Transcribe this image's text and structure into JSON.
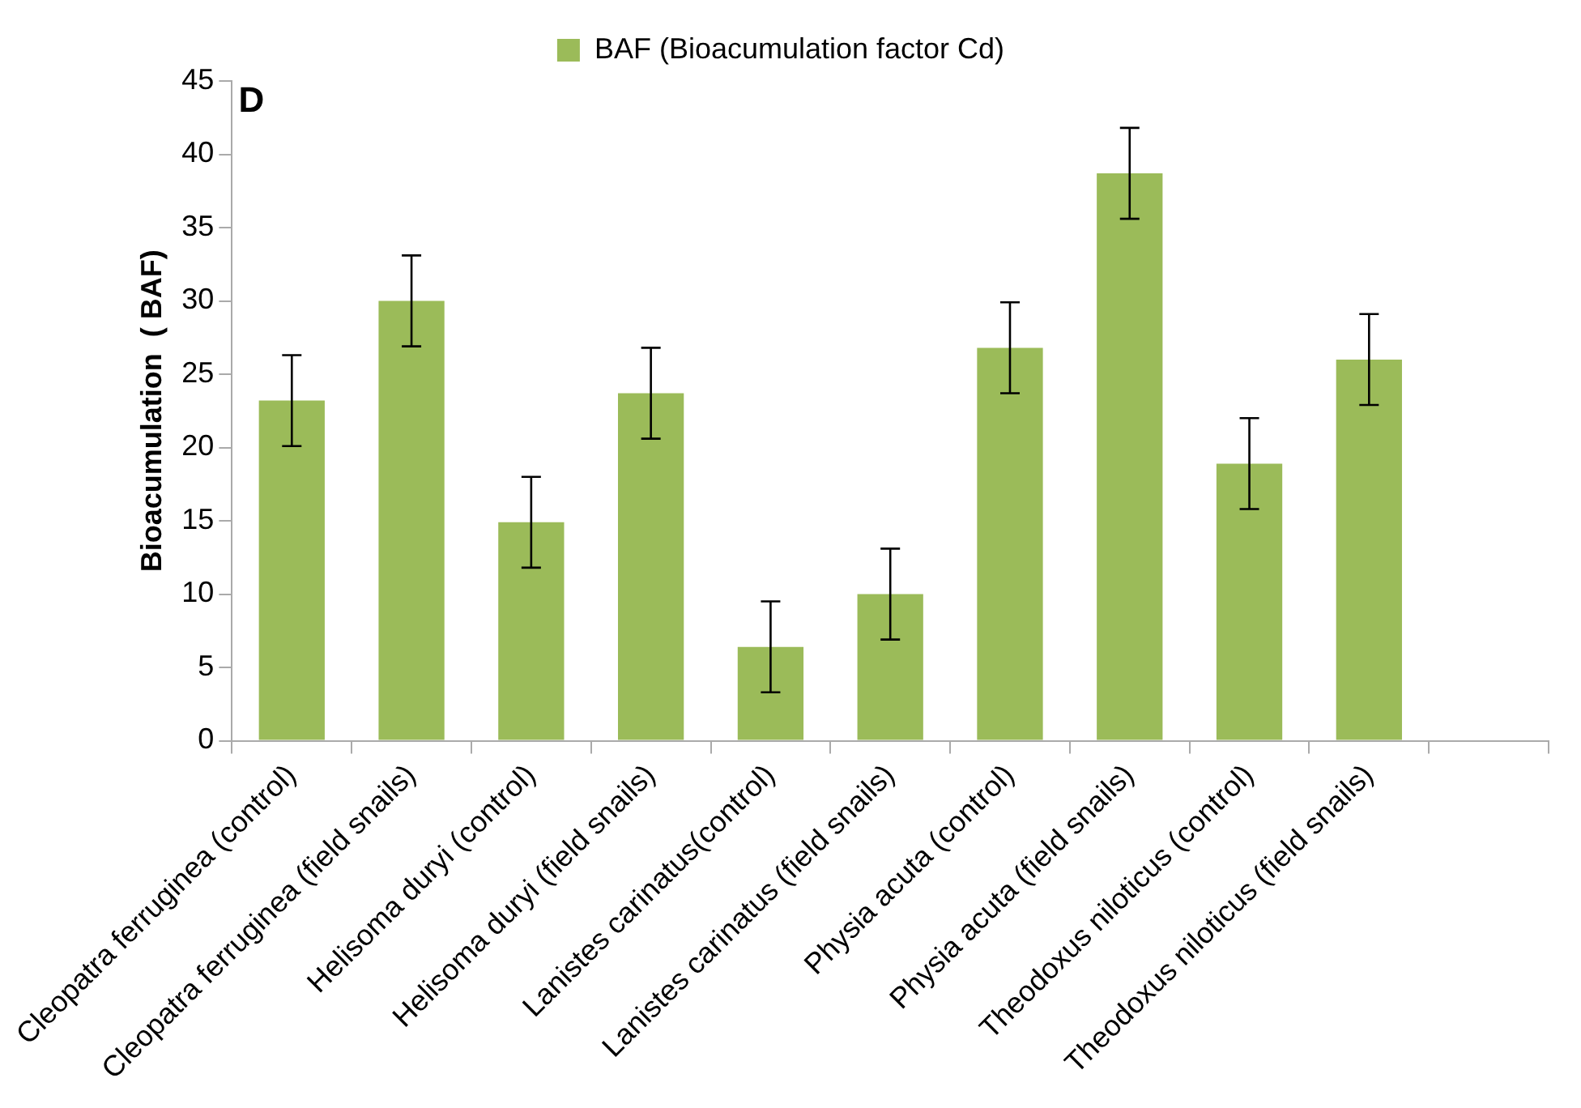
{
  "chart_data": {
    "type": "bar",
    "ylabel": "Bioacumulation  ( BAF)",
    "categories": [
      "Cleopatra ferruginea (control)",
      "Cleopatra ferruginea (field snails)",
      "Helisoma duryi (control)",
      "Helisoma duryi (field snails)",
      "Lanistes carinatus(control)",
      "Lanistes carinatus (field snails)",
      "Physia acuta (control)",
      "Physia acuta (field snails)",
      "Theodoxus niloticus (control)",
      "Theodoxus niloticus (field snails)",
      null
    ],
    "series": [
      {
        "name": "BAF (Bioacumulation factor Cd)",
        "color": "#9bbb59",
        "values": [
          23.2,
          30,
          14.9,
          23.7,
          6.4,
          10,
          26.8,
          38.7,
          18.9,
          26,
          null
        ],
        "errors": [
          3.1,
          3.1,
          3.1,
          3.1,
          3.1,
          3.1,
          3.1,
          3.1,
          3.1,
          3.1,
          null
        ]
      }
    ],
    "ylim": [
      0,
      45
    ],
    "yticks": [
      0,
      5,
      10,
      15,
      20,
      25,
      30,
      35,
      40,
      45
    ],
    "annotations": [
      "D"
    ],
    "legend": "top",
    "grid": false
  }
}
